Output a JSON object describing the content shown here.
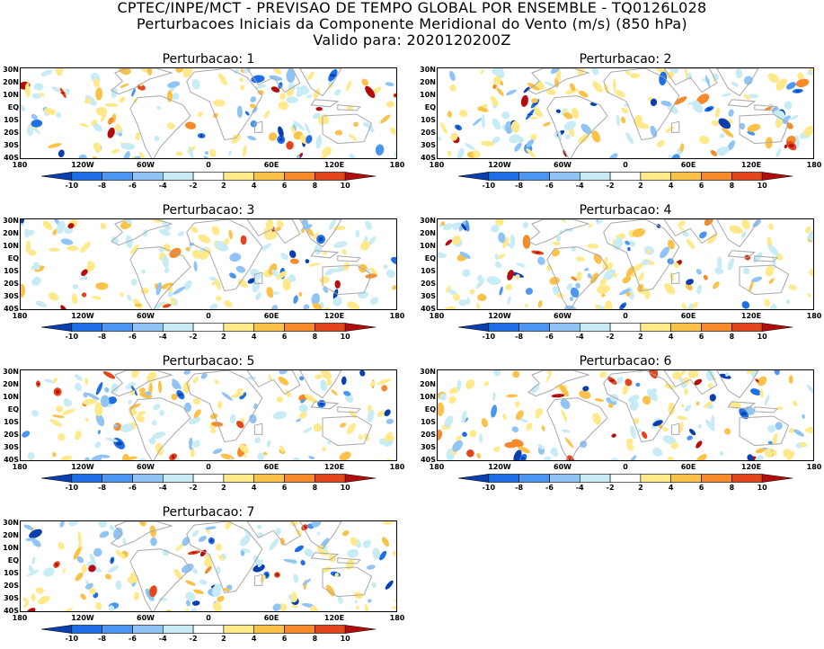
{
  "header": {
    "line1": "CPTEC/INPE/MCT - PREVISAO DE TEMPO GLOBAL POR ENSEMBLE - TQ0126L028",
    "line2": "Perturbacoes Iniciais da Componente Meridional do Vento (m/s) (850 hPa)",
    "line3": "Valido para: 2020120200Z"
  },
  "lat_labels": [
    "30N",
    "20N",
    "10N",
    "EQ",
    "10S",
    "20S",
    "30S",
    "40S"
  ],
  "lon_labels": [
    "180",
    "120W",
    "60W",
    "0",
    "60E",
    "120E",
    "180"
  ],
  "colorbar": {
    "labels": [
      "-10",
      "-8",
      "-6",
      "-4",
      "-2",
      "2",
      "4",
      "6",
      "8",
      "10"
    ],
    "colors": [
      "#0a3fb0",
      "#1e6ee6",
      "#4a96f0",
      "#8fc4f5",
      "#c8ecf5",
      "#ffffff",
      "#ffe98a",
      "#fbc24a",
      "#f48a2a",
      "#e2461c",
      "#b50d0d"
    ]
  },
  "panels": [
    {
      "title": "Perturbacao: 1"
    },
    {
      "title": "Perturbacao: 2"
    },
    {
      "title": "Perturbacao: 3"
    },
    {
      "title": "Perturbacao: 4"
    },
    {
      "title": "Perturbacao: 5"
    },
    {
      "title": "Perturbacao: 6"
    },
    {
      "title": "Perturbacao: 7"
    }
  ]
}
